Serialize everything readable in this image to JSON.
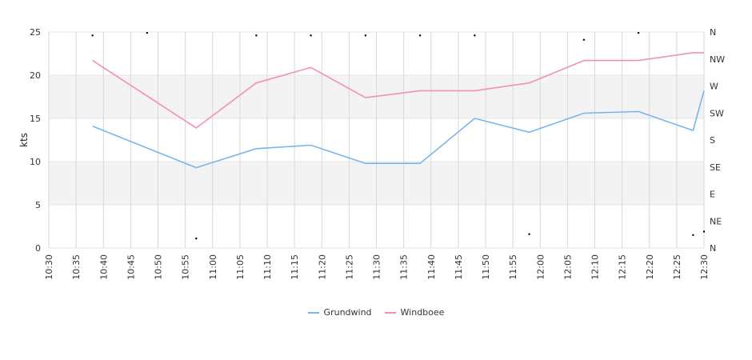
{
  "chart_data": {
    "type": "line",
    "ylabel": "kts",
    "ylim": [
      0,
      25
    ],
    "yticks": [
      "0",
      "5",
      "10",
      "15",
      "20",
      "25"
    ],
    "right_ticks": [
      "N",
      "NE",
      "E",
      "SE",
      "S",
      "SW",
      "W",
      "NW",
      "N"
    ],
    "x_tick_labels": [
      "10:30",
      "10:35",
      "10:40",
      "10:45",
      "10:50",
      "10:55",
      "11:00",
      "11:05",
      "11:10",
      "11:15",
      "11:20",
      "11:25",
      "11:30",
      "11:35",
      "11:40",
      "11:45",
      "11:50",
      "11:55",
      "12:00",
      "12:05",
      "12:10",
      "12:15",
      "12:20",
      "12:25",
      "12:30"
    ],
    "xlim": [
      "10:30",
      "12:30"
    ],
    "grid": true,
    "bands": [
      [
        5,
        10
      ],
      [
        15,
        20
      ]
    ],
    "legend_position": "bottom",
    "series": [
      {
        "name": "Grundwind",
        "color": "#7cb5ec",
        "points": [
          [
            "10:38",
            14.1
          ],
          [
            "10:57",
            9.3
          ],
          [
            "11:08",
            11.5
          ],
          [
            "11:18",
            11.9
          ],
          [
            "11:28",
            9.8
          ],
          [
            "11:38",
            9.8
          ],
          [
            "11:48",
            15.0
          ],
          [
            "11:58",
            13.4
          ],
          [
            "12:08",
            15.6
          ],
          [
            "12:18",
            15.8
          ],
          [
            "12:28",
            13.6
          ],
          [
            "12:30",
            18.2
          ]
        ]
      },
      {
        "name": "Windboee",
        "color": "#f28fbd",
        "points": [
          [
            "10:38",
            21.7
          ],
          [
            "10:57",
            13.9
          ],
          [
            "11:08",
            19.1
          ],
          [
            "11:18",
            20.9
          ],
          [
            "11:28",
            17.4
          ],
          [
            "11:38",
            18.2
          ],
          [
            "11:48",
            18.2
          ],
          [
            "11:58",
            19.1
          ],
          [
            "12:08",
            21.7
          ],
          [
            "12:18",
            21.7
          ],
          [
            "12:28",
            22.6
          ],
          [
            "12:30",
            22.6
          ]
        ]
      }
    ],
    "direction_markers": [
      [
        "10:38",
        24.6
      ],
      [
        "10:48",
        24.9
      ],
      [
        "10:57",
        1.1
      ],
      [
        "11:08",
        24.6
      ],
      [
        "11:18",
        24.6
      ],
      [
        "11:28",
        24.6
      ],
      [
        "11:38",
        24.6
      ],
      [
        "11:48",
        24.6
      ],
      [
        "11:58",
        1.6
      ],
      [
        "12:08",
        24.1
      ],
      [
        "12:18",
        24.9
      ],
      [
        "12:28",
        1.5
      ],
      [
        "12:30",
        1.9
      ]
    ]
  },
  "legend": {
    "items": [
      "Grundwind",
      "Windboee"
    ]
  }
}
